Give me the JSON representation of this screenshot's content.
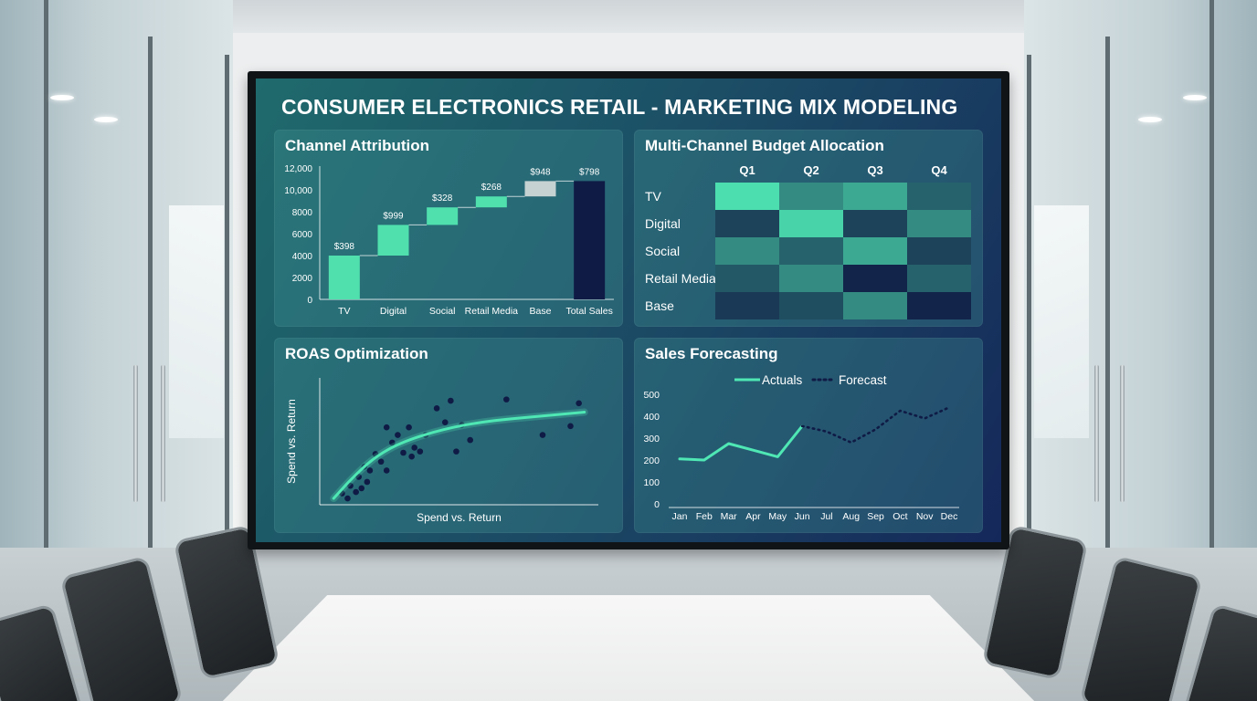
{
  "dashboard": {
    "title": "CONSUMER ELECTRONICS RETAIL - MARKETING MIX MODELING"
  },
  "panels": {
    "attribution": {
      "title": "Channel Attribution"
    },
    "budget": {
      "title": "Multi-Channel Budget Allocation"
    },
    "roas": {
      "title": "ROAS Optimization"
    },
    "forecast": {
      "title": "Sales Forecasting"
    }
  },
  "chart_data": [
    {
      "type": "bar",
      "subtype": "waterfall",
      "categories": [
        "TV",
        "Digital",
        "Social",
        "Retail Media",
        "Base",
        "Total Sales"
      ],
      "values": [
        4000,
        2800,
        1600,
        1000,
        1400,
        10800
      ],
      "data_labels": [
        "$398",
        "$999",
        "$328",
        "$268",
        "$948",
        "$798"
      ],
      "yticks": [
        "0",
        "2000",
        "4000",
        "6000",
        "8000",
        "10,000",
        "12,000"
      ],
      "ylim": [
        0,
        12000
      ],
      "colors": {
        "increase": "#4fe0ae",
        "base": "#c6d2d2",
        "total": "#0f1a45"
      }
    },
    {
      "type": "heatmap",
      "columns": [
        "Q1",
        "Q2",
        "Q3",
        "Q4"
      ],
      "rows": [
        "TV",
        "Digital",
        "Social",
        "Retail Media",
        "Base"
      ],
      "values": [
        [
          0.95,
          0.55,
          0.7,
          0.35
        ],
        [
          0.2,
          0.9,
          0.2,
          0.55
        ],
        [
          0.55,
          0.35,
          0.7,
          0.2
        ],
        [
          0.3,
          0.55,
          0.05,
          0.35
        ],
        [
          0.15,
          0.25,
          0.55,
          0.05
        ]
      ],
      "color_low": "#101a45",
      "color_high": "#4fe8b4"
    },
    {
      "type": "scatter",
      "xlabel": "Spend vs. Return",
      "ylabel": "Spend vs. Return",
      "points": [
        [
          0.08,
          0.09
        ],
        [
          0.1,
          0.05
        ],
        [
          0.11,
          0.15
        ],
        [
          0.13,
          0.1
        ],
        [
          0.14,
          0.22
        ],
        [
          0.15,
          0.13
        ],
        [
          0.16,
          0.3
        ],
        [
          0.17,
          0.18
        ],
        [
          0.18,
          0.27
        ],
        [
          0.2,
          0.4
        ],
        [
          0.22,
          0.34
        ],
        [
          0.24,
          0.27
        ],
        [
          0.24,
          0.61
        ],
        [
          0.26,
          0.49
        ],
        [
          0.28,
          0.55
        ],
        [
          0.3,
          0.41
        ],
        [
          0.32,
          0.61
        ],
        [
          0.33,
          0.38
        ],
        [
          0.34,
          0.45
        ],
        [
          0.36,
          0.42
        ],
        [
          0.38,
          0.55
        ],
        [
          0.42,
          0.76
        ],
        [
          0.45,
          0.65
        ],
        [
          0.47,
          0.82
        ],
        [
          0.49,
          0.42
        ],
        [
          0.51,
          0.63
        ],
        [
          0.54,
          0.51
        ],
        [
          0.67,
          0.83
        ],
        [
          0.8,
          0.55
        ],
        [
          0.9,
          0.62
        ],
        [
          0.93,
          0.8
        ]
      ],
      "trend": [
        [
          0.05,
          0.05
        ],
        [
          0.12,
          0.22
        ],
        [
          0.2,
          0.38
        ],
        [
          0.3,
          0.5
        ],
        [
          0.45,
          0.6
        ],
        [
          0.6,
          0.66
        ],
        [
          0.8,
          0.7
        ],
        [
          0.95,
          0.73
        ]
      ],
      "colors": {
        "points": "#0f1a45",
        "trend": "#4fe8b4"
      }
    },
    {
      "type": "line",
      "categories": [
        "Jan",
        "Feb",
        "Mar",
        "Apr",
        "May",
        "Jun",
        "Jul",
        "Aug",
        "Sep",
        "Oct",
        "Nov",
        "Dec"
      ],
      "series": [
        {
          "name": "Actuals",
          "values": [
            205,
            200,
            275,
            245,
            215,
            355,
            null,
            null,
            null,
            null,
            null,
            null
          ]
        },
        {
          "name": "Forecast",
          "values": [
            null,
            null,
            null,
            null,
            null,
            355,
            330,
            280,
            340,
            425,
            390,
            440
          ]
        }
      ],
      "yticks": [
        "0",
        "100",
        "200",
        "300",
        "400",
        "500"
      ],
      "ylim": [
        0,
        500
      ],
      "legend": "top-center",
      "colors": {
        "actuals": "#4fe8b4",
        "forecast": "#0f1a45"
      }
    }
  ]
}
